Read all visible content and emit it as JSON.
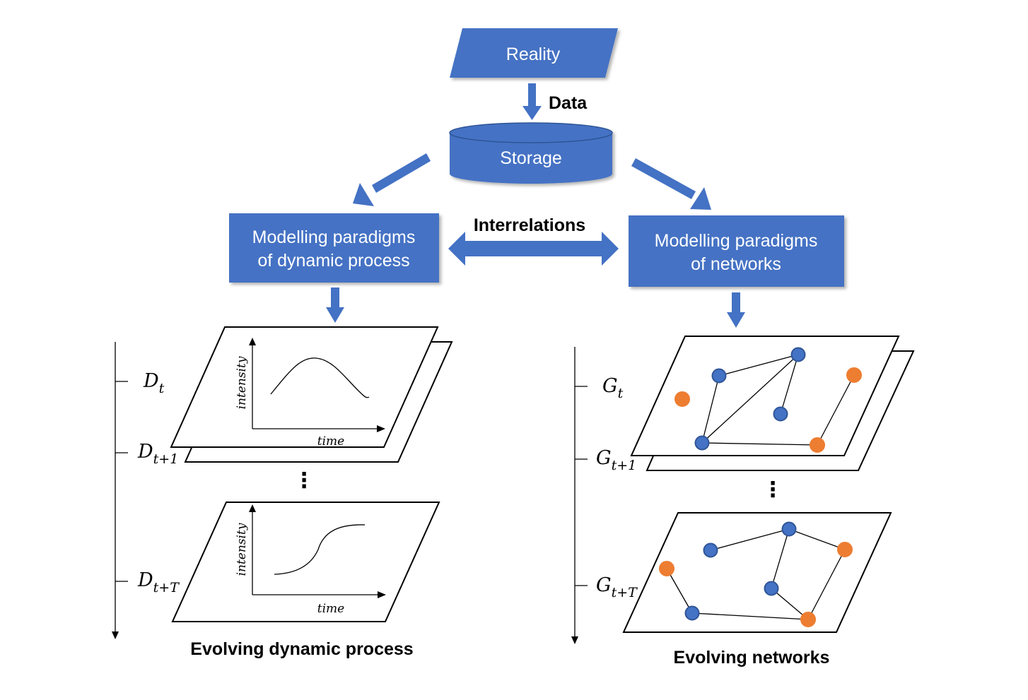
{
  "nodes": {
    "reality": "Reality",
    "storage": "Storage",
    "dynamic_process": [
      "Modelling paradigms",
      "of dynamic process"
    ],
    "networks": [
      "Modelling paradigms",
      "of networks"
    ]
  },
  "edge_labels": {
    "data": "Data",
    "interrelations": "Interrelations"
  },
  "left_panel": {
    "caption": "Evolving dynamic process",
    "layers": [
      {
        "symbol": "D",
        "sub": "t"
      },
      {
        "symbol": "D",
        "sub": "t+1"
      },
      {
        "symbol": "D",
        "sub": "t+T"
      }
    ],
    "x_axis": "time",
    "y_axis": "intensity",
    "ellipsis": "⋮"
  },
  "right_panel": {
    "caption": "Evolving networks",
    "layers": [
      {
        "symbol": "G",
        "sub": "t"
      },
      {
        "symbol": "G",
        "sub": "t+1"
      },
      {
        "symbol": "G",
        "sub": "t+T"
      }
    ],
    "ellipsis": "⋮"
  },
  "colors": {
    "box_fill": "#4472c4",
    "node_blue": "#4472c4",
    "node_orange": "#ed7d31"
  }
}
